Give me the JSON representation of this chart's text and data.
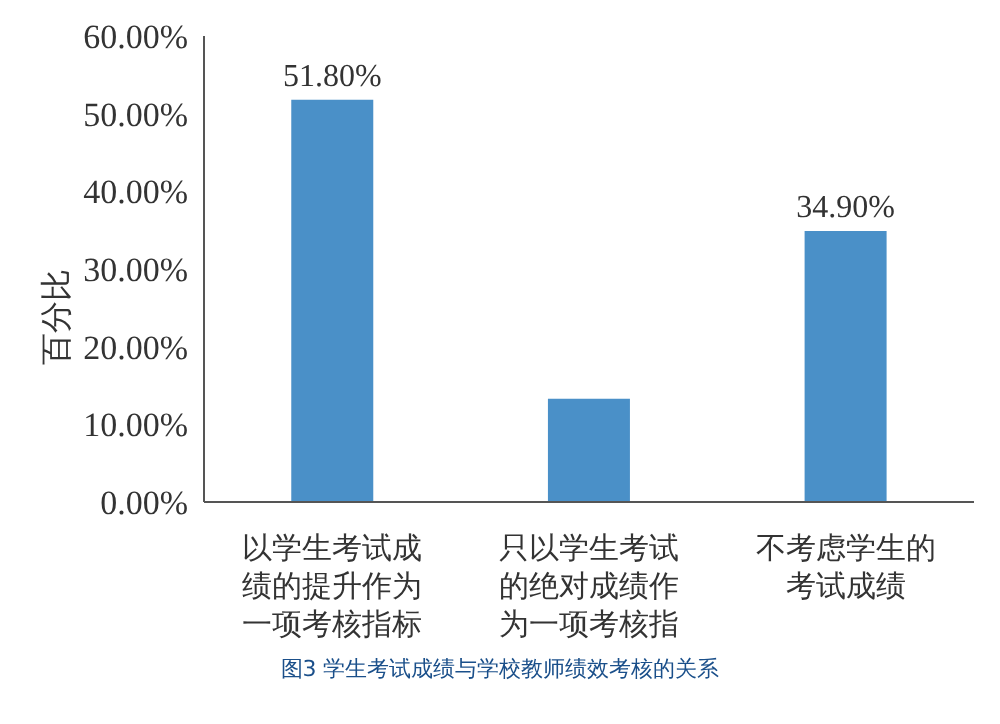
{
  "chart_data": {
    "type": "bar",
    "ylabel": "百分比",
    "categories": [
      "以学生考试成绩的提升作为一项考核指标",
      "只以学生考试的绝对成绩作为一项考核指标",
      "不考虑学生的考试成绩"
    ],
    "values": [
      51.8,
      13.3,
      34.9
    ],
    "value_labels": [
      "51.80%",
      null,
      "34.90%"
    ],
    "color": "#4a90c8",
    "ylim": [
      0,
      60
    ],
    "yticks": [
      {
        "value": 0,
        "label": "0.00%"
      },
      {
        "value": 10,
        "label": "10.00%"
      },
      {
        "value": 20,
        "label": "20.00%"
      },
      {
        "value": 30,
        "label": "30.00%"
      },
      {
        "value": 40,
        "label": "40.00%"
      },
      {
        "value": 50,
        "label": "50.00%"
      },
      {
        "value": 60,
        "label": "60.00%"
      }
    ],
    "grid": false,
    "annotations": [
      "图3 学生考试成绩与学校教师绩效考核的关系"
    ]
  }
}
